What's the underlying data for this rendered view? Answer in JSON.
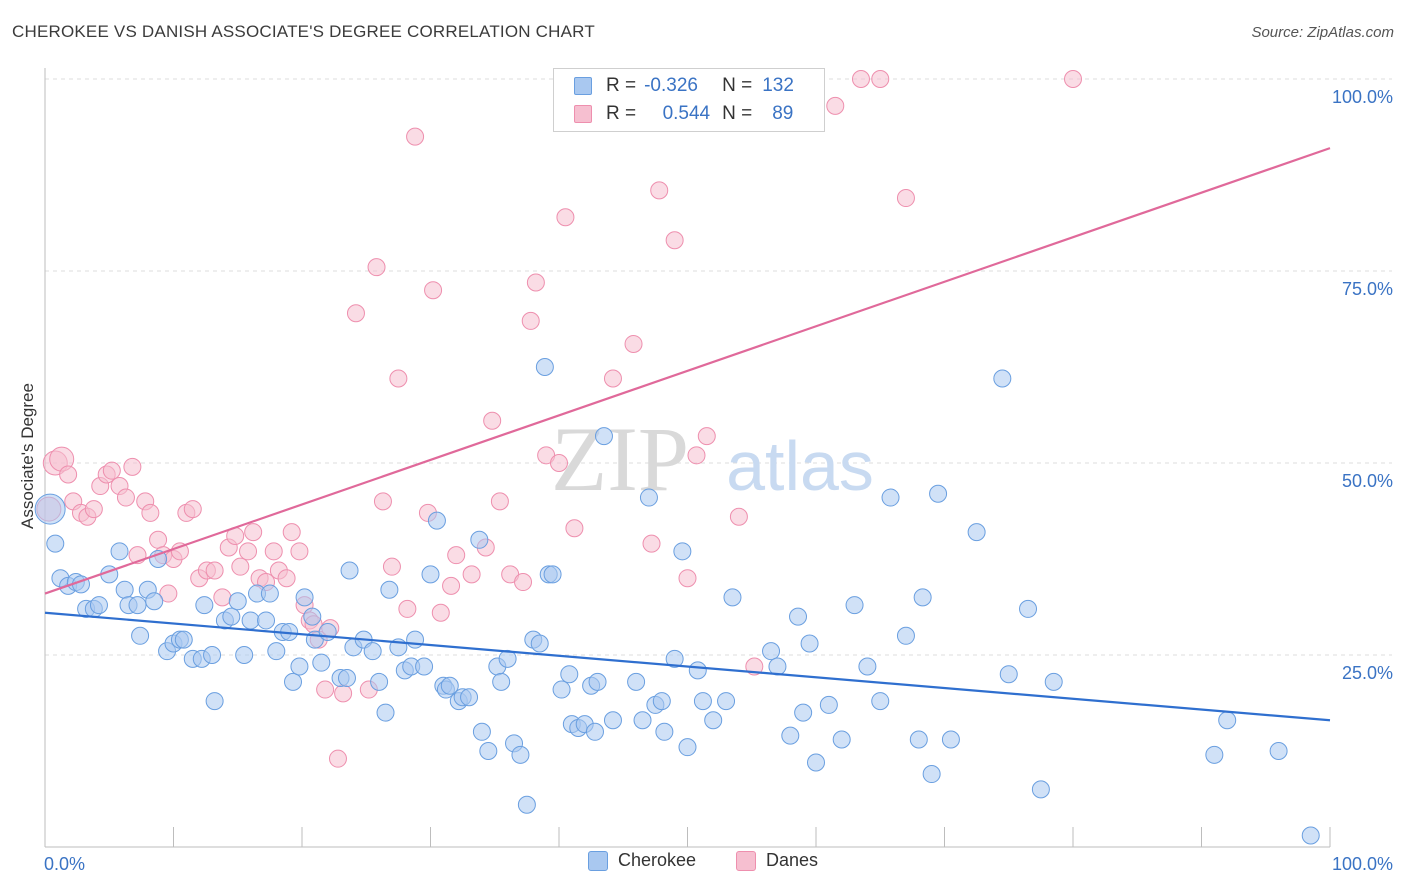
{
  "title": "CHEROKEE VS DANISH ASSOCIATE'S DEGREE CORRELATION CHART",
  "source": "Source: ZipAtlas.com",
  "watermark": {
    "zip": "ZIP",
    "atlas": "atlas"
  },
  "legend": {
    "r_label": "R =",
    "n_label": "N =",
    "cherokee": {
      "r": "-0.326",
      "n": "132"
    },
    "danes": {
      "r": "0.544",
      "n": "89"
    }
  },
  "colors": {
    "cherokee_fill": "#a9c8f0",
    "cherokee_stroke": "#6a9fe0",
    "cherokee_line": "#2f6fcf",
    "danes_fill": "#f6bfd0",
    "danes_stroke": "#ee8fae",
    "danes_line": "#e0699a",
    "tick_text": "#3a73c4"
  },
  "chart_data": {
    "type": "scatter",
    "title": "CHEROKEE VS DANISH ASSOCIATE'S DEGREE CORRELATION CHART",
    "xlabel": "",
    "ylabel": "Associate's Degree",
    "xlim": [
      0,
      100
    ],
    "ylim": [
      0,
      100
    ],
    "x_tick_labels": [
      "0.0%",
      "100.0%"
    ],
    "y_tick_labels": [
      "25.0%",
      "50.0%",
      "75.0%",
      "100.0%"
    ],
    "y_ticks": [
      25,
      50,
      75,
      100
    ],
    "grid": true,
    "legend_position": "top-center",
    "series": [
      {
        "name": "Cherokee",
        "r": -0.326,
        "n": 132,
        "trend": [
          [
            0,
            30.5
          ],
          [
            100,
            16.5
          ]
        ],
        "points": [
          [
            0.4,
            44
          ],
          [
            0.8,
            39.5
          ],
          [
            1.2,
            35
          ],
          [
            1.8,
            34
          ],
          [
            2.4,
            34.5
          ],
          [
            2.8,
            34.2
          ],
          [
            3.2,
            31
          ],
          [
            3.8,
            31
          ],
          [
            4.2,
            31.5
          ],
          [
            5,
            35.5
          ],
          [
            5.8,
            38.5
          ],
          [
            6.2,
            33.5
          ],
          [
            6.5,
            31.5
          ],
          [
            7.2,
            31.5
          ],
          [
            7.4,
            27.5
          ],
          [
            8.0,
            33.5
          ],
          [
            8.5,
            32
          ],
          [
            8.8,
            37.5
          ],
          [
            9.5,
            25.5
          ],
          [
            10,
            26.5
          ],
          [
            10.5,
            27
          ],
          [
            10.8,
            27
          ],
          [
            11.5,
            24.5
          ],
          [
            12.2,
            24.5
          ],
          [
            12.4,
            31.5
          ],
          [
            13,
            25
          ],
          [
            13.2,
            19
          ],
          [
            14,
            29.5
          ],
          [
            14.5,
            30
          ],
          [
            15,
            32
          ],
          [
            15.5,
            25
          ],
          [
            16,
            29.5
          ],
          [
            16.5,
            33
          ],
          [
            17.2,
            29.5
          ],
          [
            17.5,
            33
          ],
          [
            18,
            25.5
          ],
          [
            18.5,
            28
          ],
          [
            19,
            28
          ],
          [
            19.3,
            21.5
          ],
          [
            19.8,
            23.5
          ],
          [
            20.2,
            32.5
          ],
          [
            20.8,
            30
          ],
          [
            21,
            27
          ],
          [
            21.5,
            24
          ],
          [
            22,
            28
          ],
          [
            23,
            22
          ],
          [
            23.5,
            22
          ],
          [
            23.7,
            36
          ],
          [
            24,
            26
          ],
          [
            24.8,
            27
          ],
          [
            25.5,
            25.5
          ],
          [
            26,
            21.5
          ],
          [
            26.5,
            17.5
          ],
          [
            26.8,
            33.5
          ],
          [
            27.5,
            26
          ],
          [
            28,
            23
          ],
          [
            28.5,
            23.5
          ],
          [
            28.8,
            27
          ],
          [
            29.5,
            23.5
          ],
          [
            30,
            35.5
          ],
          [
            30.5,
            42.5
          ],
          [
            31,
            21
          ],
          [
            31.2,
            20.5
          ],
          [
            31.5,
            21
          ],
          [
            32.2,
            19
          ],
          [
            32.5,
            19.5
          ],
          [
            33,
            19.5
          ],
          [
            33.8,
            40
          ],
          [
            34,
            15
          ],
          [
            34.5,
            12.5
          ],
          [
            35.2,
            23.5
          ],
          [
            35.5,
            21.5
          ],
          [
            36,
            24.5
          ],
          [
            36.5,
            13.5
          ],
          [
            37,
            12
          ],
          [
            37.5,
            5.5
          ],
          [
            38,
            27
          ],
          [
            38.5,
            26.5
          ],
          [
            38.9,
            62.5
          ],
          [
            39.2,
            35.5
          ],
          [
            39.5,
            35.5
          ],
          [
            40.2,
            20.5
          ],
          [
            40.8,
            22.5
          ],
          [
            41,
            16
          ],
          [
            41.5,
            15.5
          ],
          [
            42,
            16
          ],
          [
            42.5,
            21
          ],
          [
            42.8,
            15
          ],
          [
            43,
            21.5
          ],
          [
            43.5,
            53.5
          ],
          [
            44.2,
            16.5
          ],
          [
            46,
            21.5
          ],
          [
            46.5,
            16.5
          ],
          [
            47,
            45.5
          ],
          [
            47.5,
            18.5
          ],
          [
            48,
            19
          ],
          [
            48.2,
            15
          ],
          [
            49,
            24.5
          ],
          [
            49.6,
            38.5
          ],
          [
            50,
            13
          ],
          [
            50.8,
            23
          ],
          [
            51.2,
            19
          ],
          [
            52,
            16.5
          ],
          [
            53,
            19
          ],
          [
            53.5,
            32.5
          ],
          [
            56.5,
            25.5
          ],
          [
            57,
            23.5
          ],
          [
            58,
            14.5
          ],
          [
            58.6,
            30
          ],
          [
            59,
            17.5
          ],
          [
            59.5,
            26.5
          ],
          [
            60,
            11
          ],
          [
            61,
            18.5
          ],
          [
            62,
            14
          ],
          [
            63,
            31.5
          ],
          [
            64,
            23.5
          ],
          [
            65,
            19
          ],
          [
            65.8,
            45.5
          ],
          [
            67,
            27.5
          ],
          [
            68,
            14
          ],
          [
            68.3,
            32.5
          ],
          [
            69,
            9.5
          ],
          [
            69.5,
            46
          ],
          [
            70.5,
            14
          ],
          [
            72.5,
            41
          ],
          [
            74.5,
            61
          ],
          [
            75,
            22.5
          ],
          [
            76.5,
            31
          ],
          [
            77.5,
            7.5
          ],
          [
            78.5,
            21.5
          ],
          [
            91,
            12
          ],
          [
            92,
            16.5
          ],
          [
            96,
            12.5
          ],
          [
            98.5,
            1.5
          ]
        ]
      },
      {
        "name": "Danes",
        "r": 0.544,
        "n": 89,
        "trend": [
          [
            0,
            33
          ],
          [
            100,
            91
          ]
        ],
        "points": [
          [
            0.3,
            44
          ],
          [
            0.8,
            50
          ],
          [
            1.3,
            50.5
          ],
          [
            1.8,
            48.5
          ],
          [
            2.2,
            45
          ],
          [
            2.8,
            43.5
          ],
          [
            3.3,
            43
          ],
          [
            3.8,
            44
          ],
          [
            4.3,
            47
          ],
          [
            4.8,
            48.5
          ],
          [
            5.2,
            49
          ],
          [
            5.8,
            47
          ],
          [
            6.3,
            45.5
          ],
          [
            6.8,
            49.5
          ],
          [
            7.2,
            38
          ],
          [
            7.8,
            45
          ],
          [
            8.2,
            43.5
          ],
          [
            8.8,
            40
          ],
          [
            9.2,
            38
          ],
          [
            9.6,
            33
          ],
          [
            10,
            37.5
          ],
          [
            10.5,
            38.5
          ],
          [
            11,
            43.5
          ],
          [
            11.5,
            44
          ],
          [
            12,
            35
          ],
          [
            12.6,
            36
          ],
          [
            13.2,
            36
          ],
          [
            13.8,
            32.5
          ],
          [
            14.3,
            39
          ],
          [
            14.8,
            40.5
          ],
          [
            15.2,
            36.5
          ],
          [
            15.8,
            38.5
          ],
          [
            16.2,
            41
          ],
          [
            16.7,
            35
          ],
          [
            17.2,
            34.5
          ],
          [
            17.8,
            38.5
          ],
          [
            18.2,
            36
          ],
          [
            18.8,
            35
          ],
          [
            19.2,
            41
          ],
          [
            19.8,
            38.5
          ],
          [
            20.2,
            31.5
          ],
          [
            20.6,
            29.5
          ],
          [
            20.9,
            29
          ],
          [
            21.3,
            27
          ],
          [
            21.8,
            20.5
          ],
          [
            22.2,
            28.5
          ],
          [
            22.8,
            11.5
          ],
          [
            23.2,
            20
          ],
          [
            24.2,
            69.5
          ],
          [
            25.2,
            20.5
          ],
          [
            25.8,
            75.5
          ],
          [
            26.3,
            45
          ],
          [
            27,
            36.5
          ],
          [
            27.5,
            61
          ],
          [
            28.2,
            31
          ],
          [
            28.8,
            92.5
          ],
          [
            29.8,
            43.5
          ],
          [
            30.2,
            72.5
          ],
          [
            30.8,
            30.5
          ],
          [
            31.6,
            34
          ],
          [
            32,
            38
          ],
          [
            33.2,
            35.5
          ],
          [
            34.3,
            39
          ],
          [
            34.8,
            55.5
          ],
          [
            35.4,
            45
          ],
          [
            36.2,
            35.5
          ],
          [
            37.2,
            34.5
          ],
          [
            37.8,
            68.5
          ],
          [
            38.2,
            73.5
          ],
          [
            39,
            51
          ],
          [
            40,
            50
          ],
          [
            40.5,
            82
          ],
          [
            41.2,
            41.5
          ],
          [
            44.2,
            61
          ],
          [
            45.8,
            65.5
          ],
          [
            47.2,
            39.5
          ],
          [
            47.8,
            85.5
          ],
          [
            49,
            79
          ],
          [
            50,
            35
          ],
          [
            50.7,
            51
          ],
          [
            51.5,
            53.5
          ],
          [
            54,
            43
          ],
          [
            55.2,
            23.5
          ],
          [
            56.5,
            100
          ],
          [
            61.5,
            96.5
          ],
          [
            63.5,
            100
          ],
          [
            65,
            100
          ],
          [
            67,
            84.5
          ],
          [
            80,
            100
          ]
        ]
      }
    ]
  }
}
